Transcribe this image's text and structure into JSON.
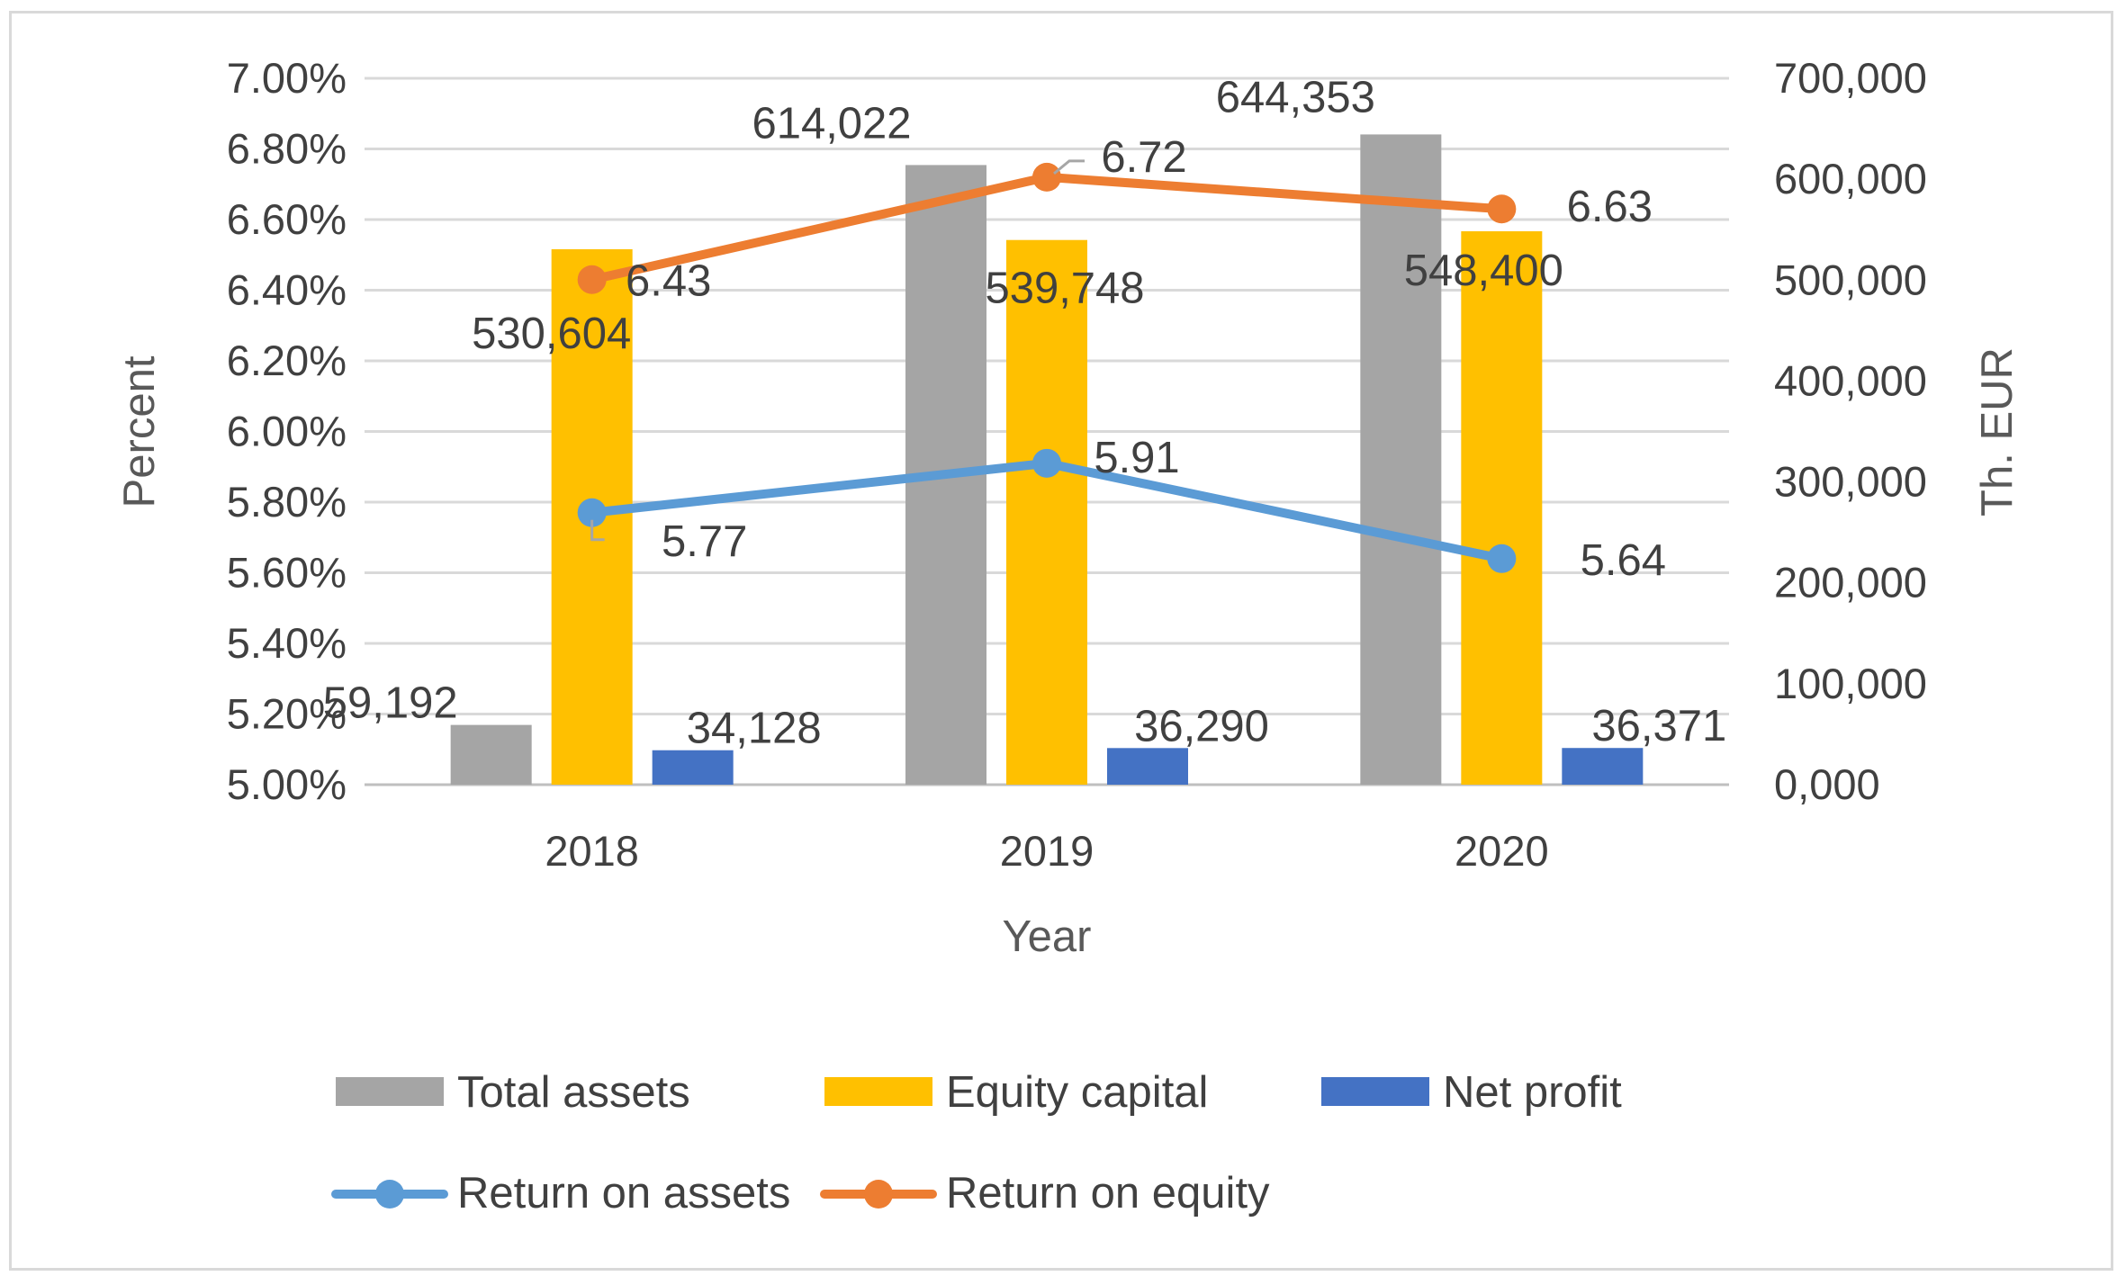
{
  "chart_data": {
    "type": "bar",
    "title": "",
    "xlabel": "Year",
    "ylabel_left": "Percent",
    "ylabel_right": "Th. EUR",
    "categories": [
      "2018",
      "2019",
      "2020"
    ],
    "left_axis": {
      "min": 5.0,
      "max": 7.0,
      "step": 0.2,
      "tick_labels": [
        "5.00%",
        "5.20%",
        "5.40%",
        "5.60%",
        "5.80%",
        "6.00%",
        "6.20%",
        "6.40%",
        "6.60%",
        "6.80%",
        "7.00%"
      ]
    },
    "right_axis": {
      "min": 0,
      "max": 700000,
      "step": 100000,
      "tick_labels": [
        "0,000",
        "100,000",
        "200,000",
        "300,000",
        "400,000",
        "500,000",
        "600,000",
        "700,000"
      ]
    },
    "bar_series": [
      {
        "name": "Total assets",
        "color": "#a5a5a5",
        "values": [
          59192,
          614022,
          644353
        ],
        "labels": [
          "59,192",
          "614,022",
          "644,353"
        ]
      },
      {
        "name": "Equity capital",
        "color": "#ffc000",
        "values": [
          530604,
          539748,
          548400
        ],
        "labels": [
          "530,604",
          "539,748",
          "548,400"
        ]
      },
      {
        "name": "Net profit",
        "color": "#4472c4",
        "values": [
          34128,
          36290,
          36371
        ],
        "labels": [
          "34,128",
          "36,290",
          "36,371"
        ]
      }
    ],
    "line_series": [
      {
        "name": "Return on assets",
        "color": "#5b9bd5",
        "values": [
          5.77,
          5.91,
          5.64
        ],
        "labels": [
          "5.77",
          "5.91",
          "5.64"
        ]
      },
      {
        "name": "Return on equity",
        "color": "#ed7d31",
        "values": [
          6.43,
          6.72,
          6.63
        ],
        "labels": [
          "6.43",
          "6.72",
          "6.63"
        ]
      }
    ],
    "legend_position": "bottom",
    "grid": true
  }
}
